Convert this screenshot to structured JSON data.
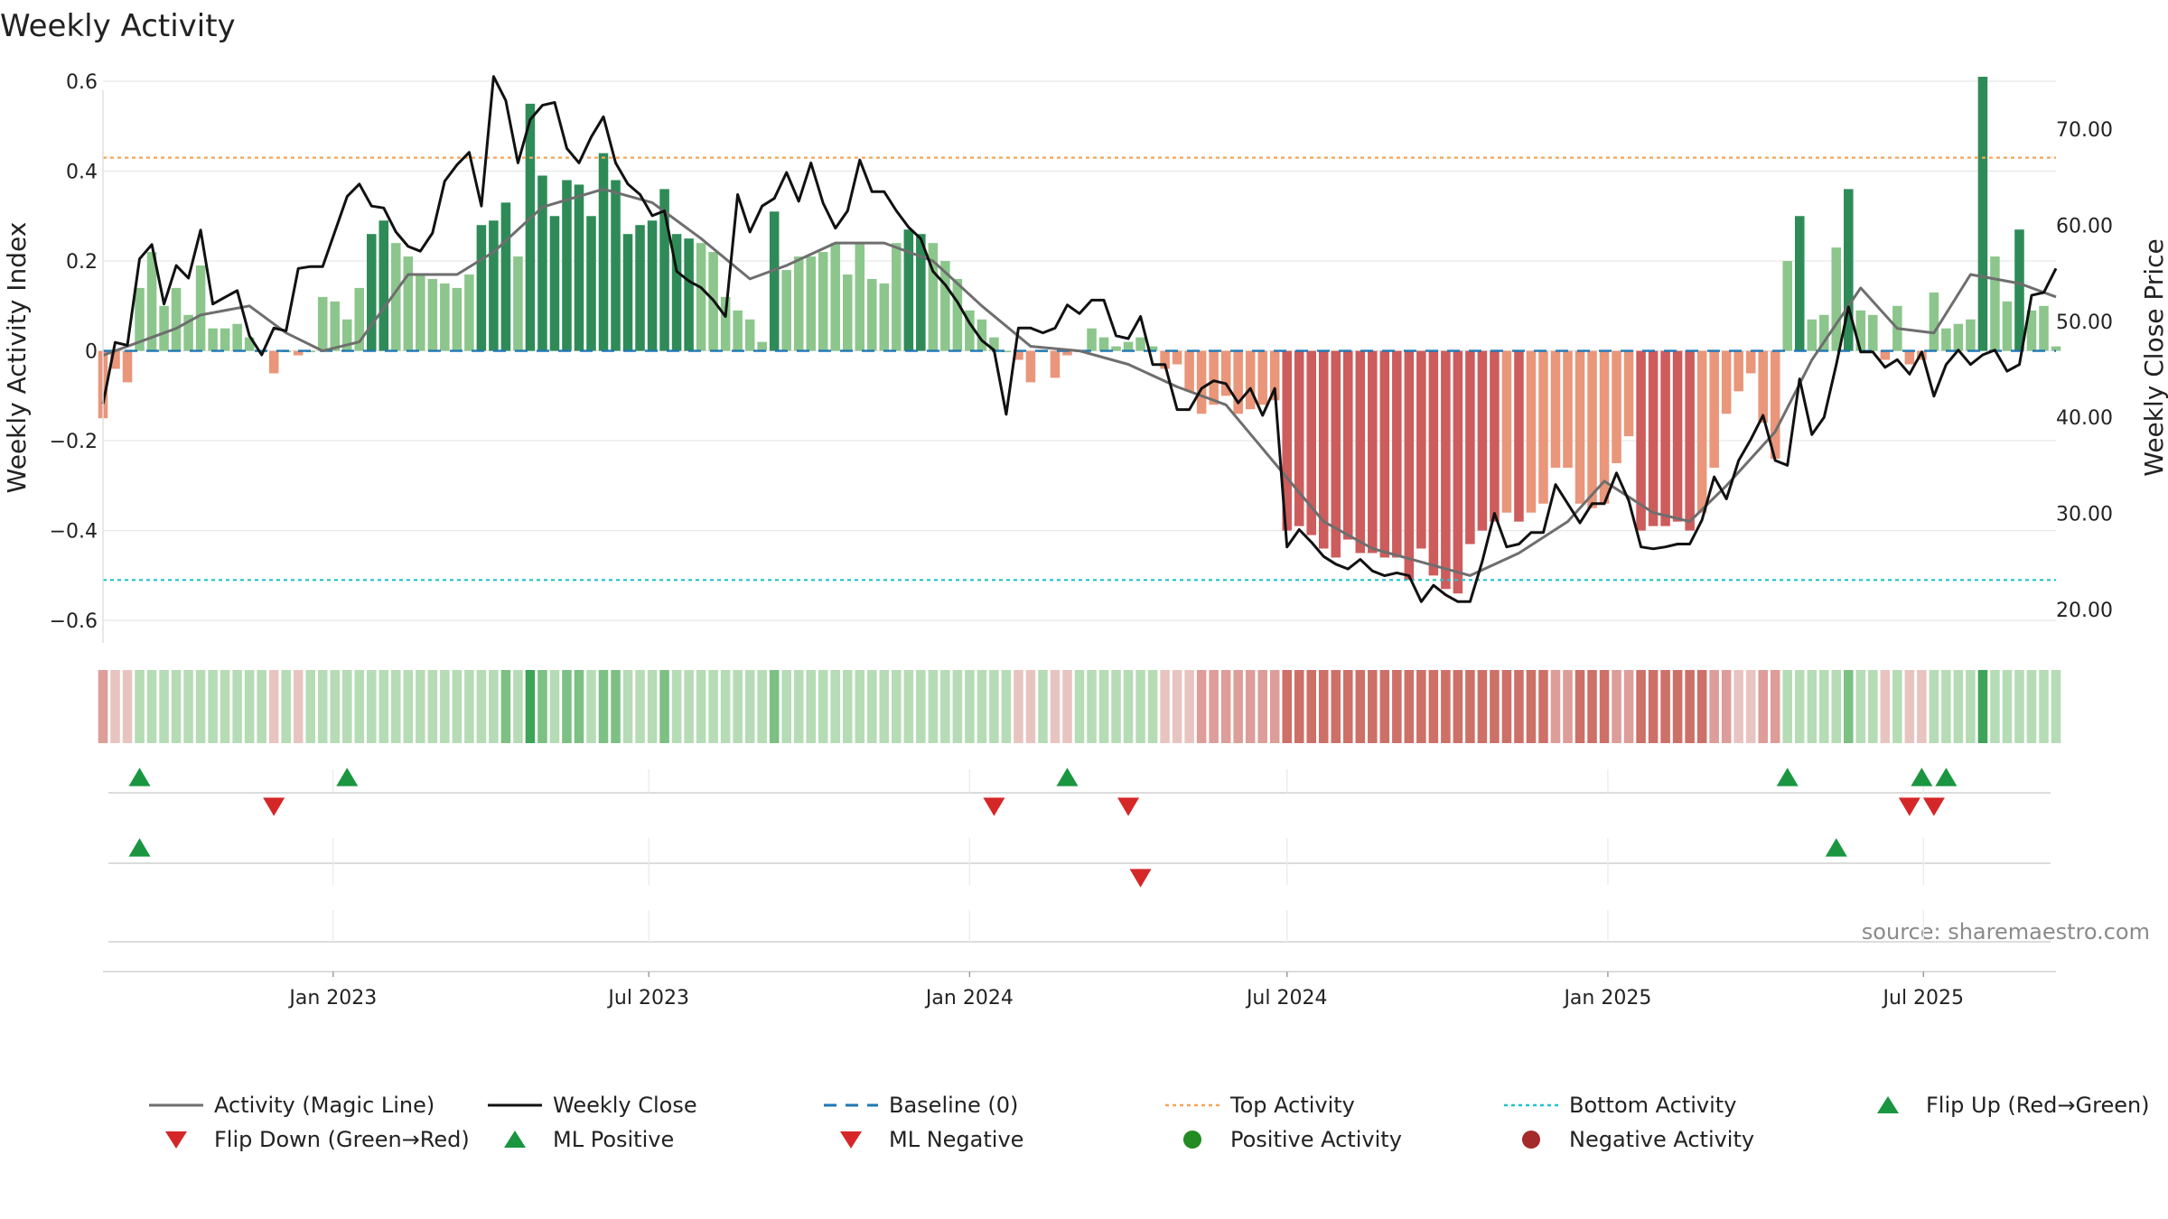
{
  "chart_data": {
    "type": "bar",
    "title": "Weekly Activity",
    "ylabel": "Weekly Activity Index",
    "y2label": "Weekly Close Price",
    "source": "source: sharemaestro.com",
    "ylim": [
      -0.65,
      0.6
    ],
    "y2lim": [
      16.5,
      75
    ],
    "yticks": [
      -0.6,
      -0.4,
      -0.2,
      0,
      0.2,
      0.4,
      0.6
    ],
    "ytick_labels": [
      "−0.6",
      "−0.4",
      "−0.2",
      "0",
      "0.2",
      "0.4",
      "0.6"
    ],
    "y2ticks": [
      20,
      30,
      40,
      50,
      60,
      70
    ],
    "y2tick_labels": [
      "20.00",
      "30.00",
      "40.00",
      "50.00",
      "60.00",
      "70.00"
    ],
    "x_start": "2022-08-22",
    "x_end": "2025-09-15",
    "xticks": [
      {
        "date": "2023-01-01",
        "label": "Jan 2023"
      },
      {
        "date": "2023-07-01",
        "label": "Jul 2023"
      },
      {
        "date": "2024-01-01",
        "label": "Jan 2024"
      },
      {
        "date": "2024-07-01",
        "label": "Jul 2024"
      },
      {
        "date": "2025-01-01",
        "label": "Jan 2025"
      },
      {
        "date": "2025-07-01",
        "label": "Jul 2025"
      }
    ],
    "top_activity": 0.43,
    "bottom_activity": -0.51,
    "bar_start": "2022-08-22",
    "activity": [
      -0.15,
      -0.04,
      -0.07,
      0.14,
      0.22,
      0.1,
      0.14,
      0.08,
      0.19,
      0.05,
      0.05,
      0.06,
      0.03,
      0.0,
      -0.05,
      0.0,
      -0.01,
      0.0,
      0.12,
      0.11,
      0.07,
      0.14,
      0.26,
      0.29,
      0.24,
      0.21,
      0.17,
      0.16,
      0.15,
      0.14,
      0.17,
      0.28,
      0.29,
      0.33,
      0.21,
      0.55,
      0.39,
      0.3,
      0.38,
      0.37,
      0.3,
      0.44,
      0.38,
      0.26,
      0.28,
      0.29,
      0.36,
      0.26,
      0.25,
      0.24,
      0.22,
      0.12,
      0.09,
      0.07,
      0.02,
      0.31,
      0.18,
      0.21,
      0.21,
      0.22,
      0.24,
      0.17,
      0.24,
      0.16,
      0.15,
      0.24,
      0.27,
      0.26,
      0.24,
      0.2,
      0.16,
      0.09,
      0.07,
      0.03,
      0.0,
      -0.02,
      -0.07,
      0.0,
      -0.06,
      -0.01,
      0.0,
      0.05,
      0.03,
      0.01,
      0.02,
      0.03,
      0.01,
      -0.04,
      -0.03,
      -0.09,
      -0.14,
      -0.12,
      -0.1,
      -0.14,
      -0.13,
      -0.12,
      -0.11,
      -0.4,
      -0.39,
      -0.41,
      -0.44,
      -0.46,
      -0.42,
      -0.45,
      -0.45,
      -0.46,
      -0.46,
      -0.51,
      -0.44,
      -0.5,
      -0.53,
      -0.54,
      -0.43,
      -0.4,
      -0.38,
      -0.36,
      -0.38,
      -0.36,
      -0.34,
      -0.26,
      -0.26,
      -0.34,
      -0.35,
      -0.34,
      -0.25,
      -0.19,
      -0.4,
      -0.39,
      -0.39,
      -0.38,
      -0.4,
      -0.36,
      -0.26,
      -0.14,
      -0.09,
      -0.05,
      -0.16,
      -0.24,
      0.2,
      0.3,
      0.07,
      0.08,
      0.23,
      0.36,
      0.09,
      0.08,
      -0.02,
      0.1,
      -0.03,
      -0.02,
      0.13,
      0.05,
      0.06,
      0.07,
      0.61,
      0.21,
      0.11,
      0.27,
      0.09,
      0.1,
      0.01
    ],
    "bar_colors": {
      "strong_positive": "#2e8b57",
      "weak_positive": "#8cc68c",
      "strong_negative": "#cd5c5c",
      "weak_negative": "#e9967a"
    },
    "strength_bins": [
      -0.3,
      -0.1,
      0.1,
      0.3
    ],
    "heat_colors": [
      "#cd7068",
      "#dd9d98",
      "#e8c4c1",
      "#b5dcb5",
      "#7cc083",
      "#3ea45a"
    ],
    "magic_line": [
      {
        "d": "2022-08-22",
        "v": -0.01
      },
      {
        "d": "2022-10-03",
        "v": 0.05
      },
      {
        "d": "2022-10-17",
        "v": 0.08
      },
      {
        "d": "2022-11-14",
        "v": 0.1
      },
      {
        "d": "2022-12-05",
        "v": 0.04
      },
      {
        "d": "2022-12-26",
        "v": 0.0
      },
      {
        "d": "2023-01-16",
        "v": 0.02
      },
      {
        "d": "2023-02-13",
        "v": 0.17
      },
      {
        "d": "2023-03-13",
        "v": 0.17
      },
      {
        "d": "2023-04-03",
        "v": 0.22
      },
      {
        "d": "2023-05-01",
        "v": 0.32
      },
      {
        "d": "2023-06-05",
        "v": 0.36
      },
      {
        "d": "2023-07-03",
        "v": 0.33
      },
      {
        "d": "2023-07-31",
        "v": 0.25
      },
      {
        "d": "2023-08-28",
        "v": 0.16
      },
      {
        "d": "2023-09-18",
        "v": 0.19
      },
      {
        "d": "2023-10-16",
        "v": 0.24
      },
      {
        "d": "2023-11-13",
        "v": 0.24
      },
      {
        "d": "2023-12-11",
        "v": 0.2
      },
      {
        "d": "2024-01-08",
        "v": 0.1
      },
      {
        "d": "2024-02-05",
        "v": 0.01
      },
      {
        "d": "2024-03-04",
        "v": 0.0
      },
      {
        "d": "2024-04-01",
        "v": -0.03
      },
      {
        "d": "2024-04-29",
        "v": -0.08
      },
      {
        "d": "2024-05-27",
        "v": -0.12
      },
      {
        "d": "2024-06-24",
        "v": -0.25
      },
      {
        "d": "2024-07-22",
        "v": -0.38
      },
      {
        "d": "2024-08-19",
        "v": -0.44
      },
      {
        "d": "2024-09-16",
        "v": -0.47
      },
      {
        "d": "2024-10-14",
        "v": -0.5
      },
      {
        "d": "2024-11-11",
        "v": -0.45
      },
      {
        "d": "2024-12-09",
        "v": -0.38
      },
      {
        "d": "2024-12-30",
        "v": -0.29
      },
      {
        "d": "2025-01-27",
        "v": -0.36
      },
      {
        "d": "2025-02-17",
        "v": -0.38
      },
      {
        "d": "2025-03-10",
        "v": -0.3
      },
      {
        "d": "2025-04-07",
        "v": -0.18
      },
      {
        "d": "2025-04-28",
        "v": -0.02
      },
      {
        "d": "2025-05-26",
        "v": 0.14
      },
      {
        "d": "2025-06-16",
        "v": 0.05
      },
      {
        "d": "2025-07-07",
        "v": 0.04
      },
      {
        "d": "2025-07-28",
        "v": 0.17
      },
      {
        "d": "2025-08-25",
        "v": 0.15
      },
      {
        "d": "2025-09-15",
        "v": 0.12
      }
    ],
    "weekly_close": [
      {
        "d": "2022-08-22",
        "v": 41.4
      },
      {
        "d": "2022-08-29",
        "v": 47.8
      },
      {
        "d": "2022-09-05",
        "v": 47.5
      },
      {
        "d": "2022-09-12",
        "v": 56.5
      },
      {
        "d": "2022-09-19",
        "v": 58.0
      },
      {
        "d": "2022-09-26",
        "v": 51.8
      },
      {
        "d": "2022-10-03",
        "v": 55.8
      },
      {
        "d": "2022-10-10",
        "v": 54.5
      },
      {
        "d": "2022-10-17",
        "v": 59.5
      },
      {
        "d": "2022-10-24",
        "v": 51.8
      },
      {
        "d": "2022-10-31",
        "v": 52.5
      },
      {
        "d": "2022-11-07",
        "v": 53.2
      },
      {
        "d": "2022-11-14",
        "v": 48.5
      },
      {
        "d": "2022-11-21",
        "v": 46.5
      },
      {
        "d": "2022-11-28",
        "v": 49.3
      },
      {
        "d": "2022-12-05",
        "v": 49.0
      },
      {
        "d": "2022-12-12",
        "v": 55.5
      },
      {
        "d": "2022-12-19",
        "v": 55.7
      },
      {
        "d": "2022-12-26",
        "v": 55.7
      },
      {
        "d": "2023-01-09",
        "v": 63.0
      },
      {
        "d": "2023-01-16",
        "v": 64.3
      },
      {
        "d": "2023-01-23",
        "v": 62.0
      },
      {
        "d": "2023-01-30",
        "v": 61.8
      },
      {
        "d": "2023-02-06",
        "v": 59.3
      },
      {
        "d": "2023-02-13",
        "v": 57.8
      },
      {
        "d": "2023-02-20",
        "v": 57.3
      },
      {
        "d": "2023-02-27",
        "v": 59.2
      },
      {
        "d": "2023-03-06",
        "v": 64.6
      },
      {
        "d": "2023-03-13",
        "v": 66.3
      },
      {
        "d": "2023-03-20",
        "v": 67.6
      },
      {
        "d": "2023-03-27",
        "v": 62.0
      },
      {
        "d": "2023-04-03",
        "v": 75.5
      },
      {
        "d": "2023-04-10",
        "v": 73.0
      },
      {
        "d": "2023-04-17",
        "v": 66.5
      },
      {
        "d": "2023-04-24",
        "v": 71.0
      },
      {
        "d": "2023-05-01",
        "v": 72.5
      },
      {
        "d": "2023-05-08",
        "v": 72.8
      },
      {
        "d": "2023-05-15",
        "v": 68.0
      },
      {
        "d": "2023-05-22",
        "v": 66.5
      },
      {
        "d": "2023-05-29",
        "v": 69.2
      },
      {
        "d": "2023-06-05",
        "v": 71.3
      },
      {
        "d": "2023-06-12",
        "v": 66.5
      },
      {
        "d": "2023-06-19",
        "v": 64.3
      },
      {
        "d": "2023-06-26",
        "v": 63.2
      },
      {
        "d": "2023-07-03",
        "v": 61.0
      },
      {
        "d": "2023-07-10",
        "v": 61.5
      },
      {
        "d": "2023-07-17",
        "v": 55.2
      },
      {
        "d": "2023-07-24",
        "v": 54.2
      },
      {
        "d": "2023-07-31",
        "v": 53.5
      },
      {
        "d": "2023-08-07",
        "v": 52.2
      },
      {
        "d": "2023-08-14",
        "v": 50.5
      },
      {
        "d": "2023-08-21",
        "v": 63.2
      },
      {
        "d": "2023-08-28",
        "v": 59.3
      },
      {
        "d": "2023-09-04",
        "v": 62.0
      },
      {
        "d": "2023-09-11",
        "v": 62.8
      },
      {
        "d": "2023-09-18",
        "v": 65.5
      },
      {
        "d": "2023-09-25",
        "v": 62.5
      },
      {
        "d": "2023-10-02",
        "v": 66.5
      },
      {
        "d": "2023-10-09",
        "v": 62.3
      },
      {
        "d": "2023-10-16",
        "v": 59.7
      },
      {
        "d": "2023-10-23",
        "v": 61.5
      },
      {
        "d": "2023-10-30",
        "v": 66.8
      },
      {
        "d": "2023-11-06",
        "v": 63.5
      },
      {
        "d": "2023-11-13",
        "v": 63.5
      },
      {
        "d": "2023-11-20",
        "v": 61.5
      },
      {
        "d": "2023-11-27",
        "v": 59.8
      },
      {
        "d": "2023-12-04",
        "v": 58.6
      },
      {
        "d": "2023-12-11",
        "v": 55.2
      },
      {
        "d": "2023-12-18",
        "v": 53.8
      },
      {
        "d": "2023-12-25",
        "v": 52.0
      },
      {
        "d": "2024-01-01",
        "v": 49.8
      },
      {
        "d": "2024-01-08",
        "v": 48.0
      },
      {
        "d": "2024-01-15",
        "v": 47.0
      },
      {
        "d": "2024-01-22",
        "v": 40.3
      },
      {
        "d": "2024-01-29",
        "v": 49.3
      },
      {
        "d": "2024-02-05",
        "v": 49.3
      },
      {
        "d": "2024-02-12",
        "v": 48.8
      },
      {
        "d": "2024-02-19",
        "v": 49.3
      },
      {
        "d": "2024-02-26",
        "v": 51.7
      },
      {
        "d": "2024-03-04",
        "v": 50.8
      },
      {
        "d": "2024-03-11",
        "v": 52.2
      },
      {
        "d": "2024-03-18",
        "v": 52.2
      },
      {
        "d": "2024-03-25",
        "v": 48.5
      },
      {
        "d": "2024-04-01",
        "v": 48.2
      },
      {
        "d": "2024-04-08",
        "v": 50.5
      },
      {
        "d": "2024-04-15",
        "v": 45.5
      },
      {
        "d": "2024-04-22",
        "v": 45.5
      },
      {
        "d": "2024-04-29",
        "v": 40.8
      },
      {
        "d": "2024-05-06",
        "v": 40.8
      },
      {
        "d": "2024-05-13",
        "v": 43.0
      },
      {
        "d": "2024-05-20",
        "v": 43.8
      },
      {
        "d": "2024-05-27",
        "v": 43.5
      },
      {
        "d": "2024-06-03",
        "v": 41.5
      },
      {
        "d": "2024-06-10",
        "v": 43.0
      },
      {
        "d": "2024-06-17",
        "v": 40.2
      },
      {
        "d": "2024-06-24",
        "v": 43.0
      },
      {
        "d": "2024-07-01",
        "v": 26.5
      },
      {
        "d": "2024-07-08",
        "v": 28.3
      },
      {
        "d": "2024-07-15",
        "v": 27.0
      },
      {
        "d": "2024-07-22",
        "v": 25.5
      },
      {
        "d": "2024-07-29",
        "v": 24.7
      },
      {
        "d": "2024-08-05",
        "v": 24.2
      },
      {
        "d": "2024-08-12",
        "v": 25.2
      },
      {
        "d": "2024-08-19",
        "v": 24.0
      },
      {
        "d": "2024-08-26",
        "v": 23.5
      },
      {
        "d": "2024-09-02",
        "v": 23.8
      },
      {
        "d": "2024-09-09",
        "v": 23.5
      },
      {
        "d": "2024-09-16",
        "v": 20.8
      },
      {
        "d": "2024-09-23",
        "v": 22.5
      },
      {
        "d": "2024-09-30",
        "v": 21.5
      },
      {
        "d": "2024-10-07",
        "v": 20.8
      },
      {
        "d": "2024-10-14",
        "v": 20.8
      },
      {
        "d": "2024-10-21",
        "v": 25.0
      },
      {
        "d": "2024-10-28",
        "v": 30.0
      },
      {
        "d": "2024-11-04",
        "v": 26.5
      },
      {
        "d": "2024-11-11",
        "v": 26.8
      },
      {
        "d": "2024-11-18",
        "v": 28.0
      },
      {
        "d": "2024-11-25",
        "v": 28.0
      },
      {
        "d": "2024-12-02",
        "v": 33.0
      },
      {
        "d": "2024-12-09",
        "v": 31.0
      },
      {
        "d": "2024-12-16",
        "v": 29.0
      },
      {
        "d": "2024-12-23",
        "v": 31.0
      },
      {
        "d": "2024-12-30",
        "v": 31.0
      },
      {
        "d": "2025-01-06",
        "v": 34.2
      },
      {
        "d": "2025-01-13",
        "v": 31.3
      },
      {
        "d": "2025-01-20",
        "v": 26.5
      },
      {
        "d": "2025-01-27",
        "v": 26.3
      },
      {
        "d": "2025-02-03",
        "v": 26.5
      },
      {
        "d": "2025-02-10",
        "v": 26.8
      },
      {
        "d": "2025-02-17",
        "v": 26.8
      },
      {
        "d": "2025-02-24",
        "v": 29.3
      },
      {
        "d": "2025-03-03",
        "v": 33.8
      },
      {
        "d": "2025-03-10",
        "v": 31.5
      },
      {
        "d": "2025-03-17",
        "v": 35.5
      },
      {
        "d": "2025-03-24",
        "v": 37.7
      },
      {
        "d": "2025-03-31",
        "v": 40.2
      },
      {
        "d": "2025-04-07",
        "v": 35.5
      },
      {
        "d": "2025-04-14",
        "v": 35.0
      },
      {
        "d": "2025-04-21",
        "v": 44.0
      },
      {
        "d": "2025-04-28",
        "v": 38.2
      },
      {
        "d": "2025-05-05",
        "v": 40.0
      },
      {
        "d": "2025-05-12",
        "v": 45.5
      },
      {
        "d": "2025-05-19",
        "v": 51.5
      },
      {
        "d": "2025-05-26",
        "v": 46.8
      },
      {
        "d": "2025-06-02",
        "v": 46.8
      },
      {
        "d": "2025-06-09",
        "v": 45.2
      },
      {
        "d": "2025-06-16",
        "v": 46.0
      },
      {
        "d": "2025-06-23",
        "v": 44.5
      },
      {
        "d": "2025-06-30",
        "v": 46.8
      },
      {
        "d": "2025-07-07",
        "v": 42.2
      },
      {
        "d": "2025-07-14",
        "v": 45.5
      },
      {
        "d": "2025-07-21",
        "v": 47.0
      },
      {
        "d": "2025-07-28",
        "v": 45.5
      },
      {
        "d": "2025-08-04",
        "v": 46.5
      },
      {
        "d": "2025-08-11",
        "v": 47.0
      },
      {
        "d": "2025-08-18",
        "v": 44.8
      },
      {
        "d": "2025-08-25",
        "v": 45.5
      },
      {
        "d": "2025-09-01",
        "v": 52.7
      },
      {
        "d": "2025-09-08",
        "v": 53.0
      },
      {
        "d": "2025-09-15",
        "v": 55.5
      }
    ],
    "flip_up": [
      "2022-09-12",
      "2023-01-09",
      "2024-02-26",
      "2025-04-14",
      "2025-06-30",
      "2025-07-14"
    ],
    "flip_down": [
      "2022-11-28",
      "2024-01-15",
      "2024-04-01",
      "2025-06-23",
      "2025-07-07"
    ],
    "ml_positive": [
      "2022-09-12",
      "2025-05-12"
    ],
    "ml_negative": [
      "2024-04-08"
    ],
    "colors": {
      "magic_line": "#6e6e6e",
      "weekly_close": "#111111",
      "baseline": "#1f77b4",
      "top_activity": "#f2a65a",
      "bottom_activity": "#22c3c9",
      "flip_up": "#1a9641",
      "flip_down": "#d62728",
      "positive_activity": "#228b22",
      "negative_activity": "#a52a2a",
      "grid": "#e6e6e6"
    },
    "legend": [
      {
        "label": "Activity (Magic Line)",
        "kind": "line",
        "color": "#6e6e6e"
      },
      {
        "label": "Weekly Close",
        "kind": "line",
        "color": "#111111"
      },
      {
        "label": "Baseline (0)",
        "kind": "dash",
        "color": "#1f77b4"
      },
      {
        "label": "Top Activity",
        "kind": "dot",
        "color": "#f2a65a"
      },
      {
        "label": "Bottom Activity",
        "kind": "dot",
        "color": "#22c3c9"
      },
      {
        "label": "Flip Up (Red→Green)",
        "kind": "tri-up",
        "color": "#1a9641"
      },
      {
        "label": "Flip Down (Green→Red)",
        "kind": "tri-down",
        "color": "#d62728"
      },
      {
        "label": "ML Positive",
        "kind": "tri-up",
        "color": "#1a9641"
      },
      {
        "label": "ML Negative",
        "kind": "tri-down",
        "color": "#d62728"
      },
      {
        "label": "Positive Activity",
        "kind": "circle",
        "color": "#228b22"
      },
      {
        "label": "Negative Activity",
        "kind": "circle",
        "color": "#a52a2a"
      }
    ],
    "legend_position": "bottom"
  }
}
